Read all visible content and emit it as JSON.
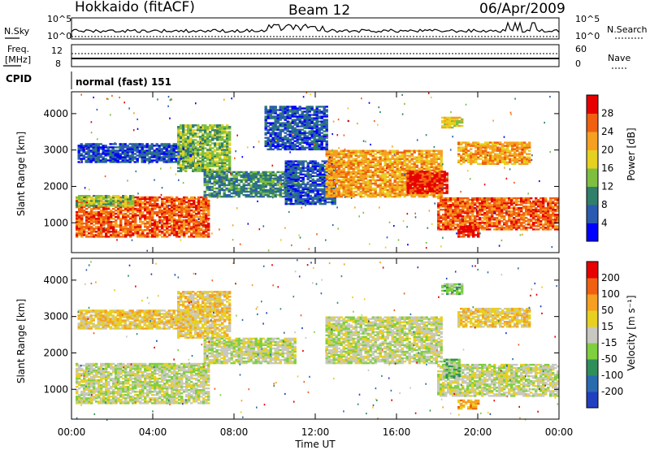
{
  "header": {
    "station": "Hokkaido (fitACF)",
    "beam": "Beam 12",
    "date": "06/Apr/2009"
  },
  "status_panels": {
    "nsky_label": "N.Sky",
    "nsearch_label": "N.Search",
    "nsky_ticks": [
      "10^5",
      "10^0"
    ],
    "nsearch_ticks": [
      "10^5",
      "10^0"
    ],
    "freq_label": [
      "Freq.",
      "[MHz]"
    ],
    "freq_ticks": [
      "12",
      "8"
    ],
    "nave_label": "Nave",
    "nave_ticks": [
      "60",
      "0"
    ],
    "cpid_label": "CPID",
    "cpid_value": "normal (fast) 151"
  },
  "chart_data": [
    {
      "type": "heatmap",
      "name": "power",
      "ylabel": "Slant Range [km]",
      "yticks": [
        1000,
        2000,
        3000,
        4000
      ],
      "ylim": [
        180,
        4600
      ],
      "xlim": [
        0,
        24
      ],
      "colorbar": {
        "label": "Power [dB]",
        "ticks": [
          "28",
          "24",
          "20",
          "16",
          "12",
          "8",
          "4"
        ],
        "colors": [
          "#0000ff",
          "#2a5bb0",
          "#2f7f6a",
          "#7fbf3f",
          "#e6d020",
          "#f5a020",
          "#f06010",
          "#e60000"
        ]
      },
      "regions": [
        {
          "t0": 0.2,
          "t1": 6.8,
          "r0": 600,
          "r1": 1700,
          "level": 6
        },
        {
          "t0": 0.2,
          "t1": 3.0,
          "r0": 1450,
          "r1": 1750,
          "level": 3
        },
        {
          "t0": 0.3,
          "t1": 6.0,
          "r0": 2650,
          "r1": 3150,
          "level": 1
        },
        {
          "t0": 5.2,
          "t1": 7.8,
          "r0": 2400,
          "r1": 3700,
          "level": 3
        },
        {
          "t0": 6.5,
          "t1": 11.0,
          "r0": 1700,
          "r1": 2400,
          "level": 2
        },
        {
          "t0": 10.5,
          "t1": 13.0,
          "r0": 1500,
          "r1": 2700,
          "level": 1
        },
        {
          "t0": 12.5,
          "t1": 18.2,
          "r0": 1700,
          "r1": 3000,
          "level": 5
        },
        {
          "t0": 16.5,
          "t1": 18.5,
          "r0": 1800,
          "r1": 2400,
          "level": 7
        },
        {
          "t0": 18.0,
          "t1": 24.0,
          "r0": 800,
          "r1": 1700,
          "level": 6
        },
        {
          "t0": 18.2,
          "t1": 19.2,
          "r0": 3600,
          "r1": 3900,
          "level": 4
        },
        {
          "t0": 19.0,
          "t1": 22.5,
          "r0": 2600,
          "r1": 3200,
          "level": 5
        },
        {
          "t0": 19.0,
          "t1": 20.0,
          "r0": 600,
          "r1": 900,
          "level": 7
        },
        {
          "t0": 9.5,
          "t1": 12.5,
          "r0": 3000,
          "r1": 4200,
          "level": 1
        }
      ]
    },
    {
      "type": "heatmap",
      "name": "velocity",
      "ylabel": "Slant Range [km]",
      "yticks": [
        1000,
        2000,
        3000,
        4000
      ],
      "ylim": [
        180,
        4600
      ],
      "xlim": [
        0,
        24
      ],
      "xticks": [
        "00:00",
        "04:00",
        "08:00",
        "12:00",
        "16:00",
        "20:00",
        "00:00"
      ],
      "xlabel": "Time UT",
      "colorbar": {
        "label": "Velocity [m s⁻¹]",
        "ticks": [
          "200",
          "100",
          "50",
          "15",
          "-15",
          "-50",
          "-100",
          "-200"
        ],
        "colors": [
          "#2040c0",
          "#2a6bb0",
          "#2f8f5a",
          "#7fcf3f",
          "#c8c8c0",
          "#e8d020",
          "#f5a020",
          "#f06010",
          "#e60000"
        ]
      },
      "regions": [
        {
          "t0": 0.2,
          "t1": 6.8,
          "r0": 600,
          "r1": 1700,
          "level": 4
        },
        {
          "t0": 0.3,
          "t1": 6.0,
          "r0": 2650,
          "r1": 3150,
          "level": 5
        },
        {
          "t0": 5.2,
          "t1": 7.8,
          "r0": 2400,
          "r1": 3700,
          "level": 5
        },
        {
          "t0": 6.5,
          "t1": 11.0,
          "r0": 1700,
          "r1": 2400,
          "level": 4
        },
        {
          "t0": 12.5,
          "t1": 18.2,
          "r0": 1700,
          "r1": 3000,
          "level": 4
        },
        {
          "t0": 18.0,
          "t1": 24.0,
          "r0": 800,
          "r1": 1700,
          "level": 4
        },
        {
          "t0": 18.3,
          "t1": 19.1,
          "r0": 1300,
          "r1": 1800,
          "level": 3
        },
        {
          "t0": 18.2,
          "t1": 19.2,
          "r0": 3600,
          "r1": 3900,
          "level": 3
        },
        {
          "t0": 19.0,
          "t1": 22.5,
          "r0": 2700,
          "r1": 3200,
          "level": 5
        },
        {
          "t0": 19.0,
          "t1": 20.0,
          "r0": 450,
          "r1": 700,
          "level": 6
        }
      ]
    }
  ]
}
